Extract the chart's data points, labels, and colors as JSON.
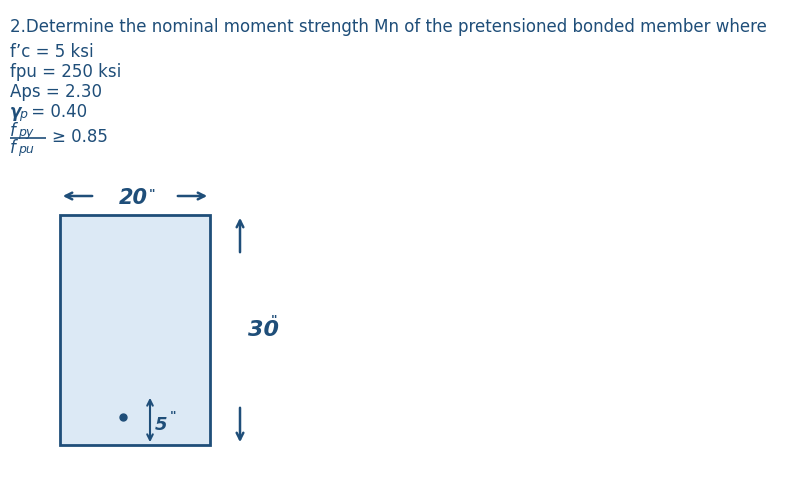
{
  "title_line": "2.Determine the nominal moment strength Mn of the pretensioned bonded member where",
  "line1": "f’c = 5 ksi",
  "line2": "fpu = 250 ksi",
  "line3": "Aps = 2.30",
  "line4_italic": "γ",
  "line4_sub": "p",
  "line4_rest": " = 0.40",
  "frac_num": "f",
  "frac_num_sub": "py",
  "frac_den": "f",
  "frac_den_sub": "pu",
  "frac_rhs": "≥ 0.85",
  "width_label": "20",
  "width_unit": "\"",
  "height_label": "30",
  "height_unit": "\"",
  "cover_label": "5",
  "cover_unit": "\"",
  "rect_color": "#dce9f5",
  "rect_edge_color": "#1f4e79",
  "text_color": "#1f4e79",
  "bg_color": "#ffffff",
  "figsize": [
    8.0,
    4.87
  ],
  "dpi": 100
}
